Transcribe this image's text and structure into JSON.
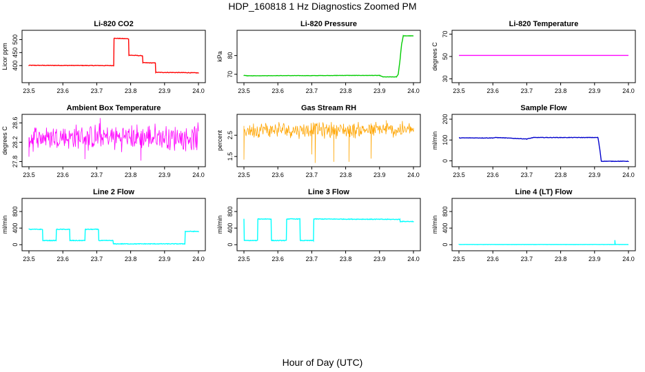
{
  "title": "HDP_160818  1 Hz Diagnostics Zoomed PM",
  "xlabel": "Hour of Day (UTC)",
  "chart_data": [
    {
      "type": "line",
      "title": "Li-820 CO2",
      "ylabel": "Licor ppm",
      "color": "#ff0000",
      "xlim": [
        23.5,
        24.0
      ],
      "ylim": [
        345,
        525
      ],
      "yticks": [
        400,
        450,
        500
      ],
      "xticks": [
        "23.5",
        "23.6",
        "23.7",
        "23.8",
        "23.9",
        "24.0"
      ],
      "series": [
        {
          "style": "step",
          "noise": 2,
          "x": [
            23.5,
            23.75,
            23.751,
            23.794,
            23.795,
            23.835,
            23.836,
            23.873,
            23.874,
            23.96,
            23.961,
            24.0
          ],
          "y": [
            401,
            400,
            505,
            503,
            440,
            438,
            411,
            410,
            374,
            373,
            373,
            372
          ]
        }
      ]
    },
    {
      "type": "line",
      "title": "Li-820 Pressure",
      "ylabel": "kPa",
      "color": "#00cc00",
      "xlim": [
        23.5,
        24.0
      ],
      "ylim": [
        67,
        92
      ],
      "yticks": [
        70,
        80
      ],
      "xticks": [
        "23.5",
        "23.6",
        "23.7",
        "23.8",
        "23.9",
        "24.0"
      ],
      "series": [
        {
          "style": "step",
          "noise": 0.15,
          "x": [
            23.5,
            23.51,
            23.6,
            23.7,
            23.8,
            23.9,
            23.91,
            23.95,
            23.955,
            23.96,
            23.965,
            23.97,
            24.0
          ],
          "y": [
            69.5,
            69.2,
            69.3,
            69.3,
            69.4,
            69.4,
            68.6,
            68.6,
            70,
            77,
            86,
            90.5,
            90.5
          ]
        }
      ]
    },
    {
      "type": "line",
      "title": "Li-820 Temperature",
      "ylabel": "degrees C",
      "color": "#ff00ff",
      "xlim": [
        23.5,
        24.0
      ],
      "ylim": [
        29,
        71
      ],
      "yticks": [
        30,
        50,
        70
      ],
      "xticks": [
        "23.5",
        "23.6",
        "23.7",
        "23.8",
        "23.9",
        "24.0"
      ],
      "series": [
        {
          "style": "step",
          "noise": 0,
          "x": [
            23.5,
            24.0
          ],
          "y": [
            51,
            51
          ]
        }
      ]
    },
    {
      "type": "line",
      "title": "Ambient Box Temperature",
      "ylabel": "degrees C",
      "color": "#ff00ff",
      "xlim": [
        23.5,
        24.0
      ],
      "ylim": [
        27.75,
        28.72
      ],
      "yticks": [
        27.8,
        28.2,
        28.6
      ],
      "xticks": [
        "23.5",
        "23.6",
        "23.7",
        "23.8",
        "23.9",
        "24.0"
      ],
      "series": [
        {
          "style": "noise",
          "x": [
            23.5,
            24.0
          ],
          "y": [
            28.3,
            28.3
          ],
          "noise": 0.32,
          "spikes": [
            [
              23.71,
              28.7
            ],
            [
              23.665,
              27.85
            ],
            [
              23.83,
              27.82
            ],
            [
              23.5,
              27.9
            ]
          ]
        }
      ]
    },
    {
      "type": "line",
      "title": "Gas Stream RH",
      "ylabel": "percent",
      "color": "#ffa500",
      "xlim": [
        23.5,
        24.0
      ],
      "ylim": [
        1.15,
        3.35
      ],
      "yticks": [
        1.5,
        2.5
      ],
      "xticks": [
        "23.5",
        "23.6",
        "23.7",
        "23.8",
        "23.9",
        "24.0"
      ],
      "series": [
        {
          "style": "noise",
          "x": [
            23.5,
            24.0
          ],
          "y": [
            2.75,
            2.75
          ],
          "noise": 0.45,
          "spikes": [
            [
              23.5,
              1.35
            ],
            [
              23.71,
              1.2
            ],
            [
              23.765,
              1.25
            ],
            [
              23.81,
              1.25
            ],
            [
              23.875,
              1.4
            ],
            [
              23.7,
              1.6
            ],
            [
              23.92,
              3.2
            ]
          ]
        }
      ]
    },
    {
      "type": "line",
      "title": "Sample Flow",
      "ylabel": "ml/min",
      "color": "#0000cc",
      "xlim": [
        23.5,
        24.0
      ],
      "ylim": [
        -15,
        210
      ],
      "yticks": [
        0,
        100,
        200
      ],
      "xticks": [
        "23.5",
        "23.6",
        "23.7",
        "23.8",
        "23.9",
        "24.0"
      ],
      "series": [
        {
          "style": "step",
          "noise": 2,
          "x": [
            23.5,
            23.6,
            23.61,
            23.7,
            23.72,
            23.91,
            23.915,
            23.92,
            24.0
          ],
          "y": [
            110,
            110,
            112,
            105,
            112,
            112,
            60,
            -2,
            -2
          ]
        }
      ]
    },
    {
      "type": "line",
      "title": "Line 2 Flow",
      "ylabel": "ml/min",
      "color": "#00ffff",
      "xlim": [
        23.5,
        24.0
      ],
      "ylim": [
        -80,
        1050
      ],
      "yticks": [
        0,
        400,
        800
      ],
      "xticks": [
        "23.5",
        "23.6",
        "23.7",
        "23.8",
        "23.9",
        "24.0"
      ],
      "series": [
        {
          "style": "step",
          "noise": 15,
          "x": [
            23.5,
            23.54,
            23.541,
            23.58,
            23.581,
            23.62,
            23.621,
            23.665,
            23.666,
            23.705,
            23.706,
            23.748,
            23.749,
            23.96,
            23.961,
            24.0
          ],
          "y": [
            370,
            370,
            100,
            100,
            370,
            370,
            100,
            100,
            370,
            370,
            100,
            100,
            20,
            20,
            320,
            320
          ]
        }
      ]
    },
    {
      "type": "line",
      "title": "Line 3 Flow",
      "ylabel": "ml/min",
      "color": "#00ffff",
      "xlim": [
        23.5,
        24.0
      ],
      "ylim": [
        -80,
        1050
      ],
      "yticks": [
        0,
        400,
        800
      ],
      "xticks": [
        "23.5",
        "23.6",
        "23.7",
        "23.8",
        "23.9",
        "24.0"
      ],
      "series": [
        {
          "style": "step",
          "noise": 15,
          "x": [
            23.5,
            23.501,
            23.54,
            23.541,
            23.58,
            23.581,
            23.625,
            23.626,
            23.665,
            23.666,
            23.705,
            23.706,
            23.96,
            23.961,
            24.0
          ],
          "y": [
            620,
            100,
            100,
            620,
            620,
            100,
            100,
            620,
            620,
            100,
            100,
            620,
            610,
            560,
            560
          ]
        }
      ]
    },
    {
      "type": "line",
      "title": "Line 4 (LT) Flow",
      "ylabel": "ml/min",
      "color": "#00ffff",
      "xlim": [
        23.5,
        24.0
      ],
      "ylim": [
        -80,
        1050
      ],
      "yticks": [
        0,
        400,
        800
      ],
      "xticks": [
        "23.5",
        "23.6",
        "23.7",
        "23.8",
        "23.9",
        "24.0"
      ],
      "series": [
        {
          "style": "step",
          "noise": 4,
          "x": [
            23.5,
            24.0
          ],
          "y": [
            5,
            5
          ],
          "spikes": [
            [
              23.96,
              110
            ]
          ]
        }
      ]
    }
  ]
}
